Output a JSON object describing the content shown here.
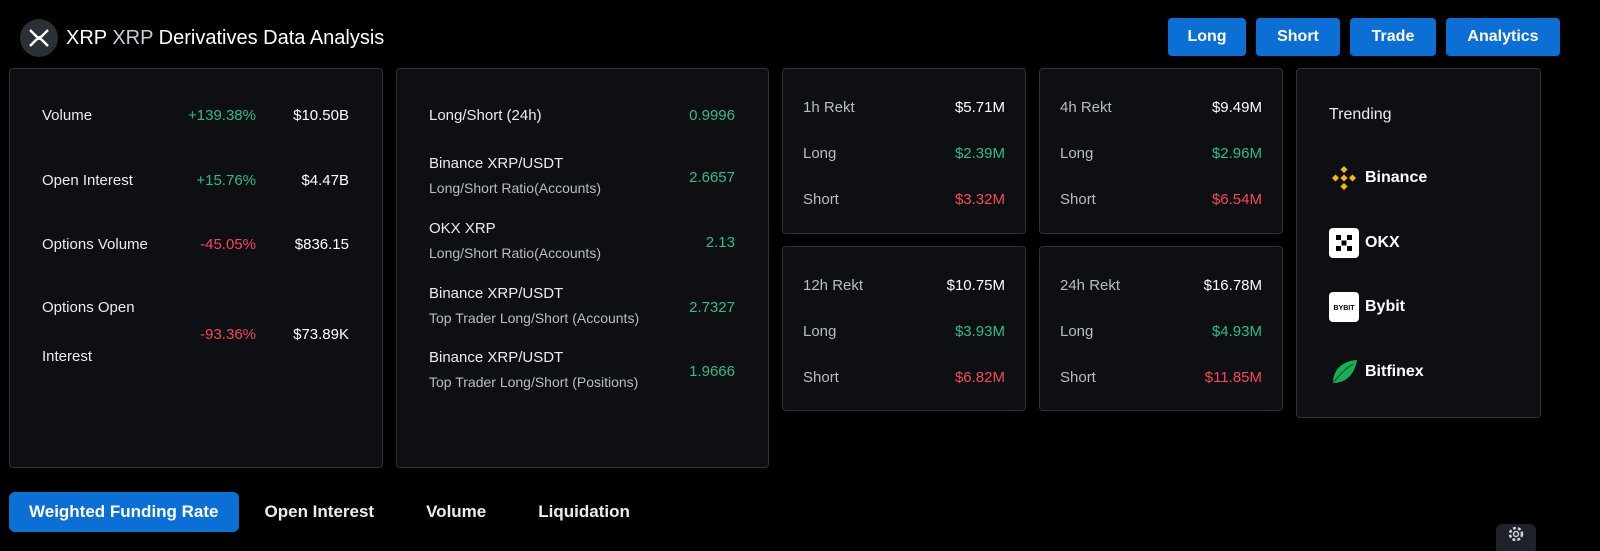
{
  "header": {
    "symbol": "XRP",
    "symbol2": "XRP",
    "title": "Derivatives Data Analysis"
  },
  "nav": {
    "long": "Long",
    "short": "Short",
    "trade": "Trade",
    "analytics": "Analytics"
  },
  "overview": [
    {
      "label": "Volume",
      "change": "+139.38%",
      "value": "$10.50B",
      "dir": "pos"
    },
    {
      "label": "Open Interest",
      "change": "+15.76%",
      "value": "$4.47B",
      "dir": "pos"
    },
    {
      "label": "Options Volume",
      "change": "-45.05%",
      "value": "$836.15",
      "dir": "neg"
    },
    {
      "label": "Options Open",
      "label2": "Interest",
      "change": "-93.36%",
      "value": "$73.89K",
      "dir": "neg"
    }
  ],
  "ratios": [
    {
      "label": "Long/Short (24h)",
      "sub": "",
      "value": "0.9996"
    },
    {
      "label": "Binance XRP/USDT",
      "sub": "Long/Short Ratio(Accounts)",
      "value": "2.6657"
    },
    {
      "label": "OKX XRP",
      "sub": "Long/Short Ratio(Accounts)",
      "value": "2.13"
    },
    {
      "label": "Binance XRP/USDT",
      "sub": "Top Trader Long/Short (Accounts)",
      "value": "2.7327"
    },
    {
      "label": "Binance XRP/USDT",
      "sub": "Top Trader Long/Short (Positions)",
      "value": "1.9666"
    }
  ],
  "rekt": [
    {
      "period": "1h Rekt",
      "total": "$5.71M",
      "long_label": "Long",
      "long": "$2.39M",
      "short_label": "Short",
      "short": "$3.32M"
    },
    {
      "period": "4h Rekt",
      "total": "$9.49M",
      "long_label": "Long",
      "long": "$2.96M",
      "short_label": "Short",
      "short": "$6.54M"
    },
    {
      "period": "12h Rekt",
      "total": "$10.75M",
      "long_label": "Long",
      "long": "$3.93M",
      "short_label": "Short",
      "short": "$6.82M"
    },
    {
      "period": "24h Rekt",
      "total": "$16.78M",
      "long_label": "Long",
      "long": "$4.93M",
      "short_label": "Short",
      "short": "$11.85M"
    }
  ],
  "trending": {
    "title": "Trending",
    "items": [
      {
        "name": "Binance",
        "icon": "binance-icon"
      },
      {
        "name": "OKX",
        "icon": "okx-icon"
      },
      {
        "name": "Bybit",
        "icon": "bybit-icon",
        "icon_text": "BYBIT"
      },
      {
        "name": "Bitfinex",
        "icon": "bitfinex-icon"
      }
    ]
  },
  "tabs": [
    "Weighted Funding Rate",
    "Open Interest",
    "Volume",
    "Liquidation"
  ],
  "colors": {
    "accent": "#0b6fd6",
    "positive": "#2ebd85",
    "negative": "#f6465d",
    "card_bg": "#0d0f13",
    "binance": "#f0b90b",
    "bitfinex": "#16b157"
  }
}
